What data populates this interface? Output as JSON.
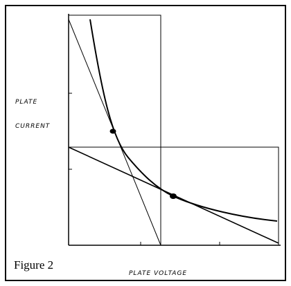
{
  "y_axis_label": [
    "PLATE",
    "CURRENT"
  ],
  "x_axis_label": "PLATE VOLTAGE",
  "caption": "Figure 2"
}
